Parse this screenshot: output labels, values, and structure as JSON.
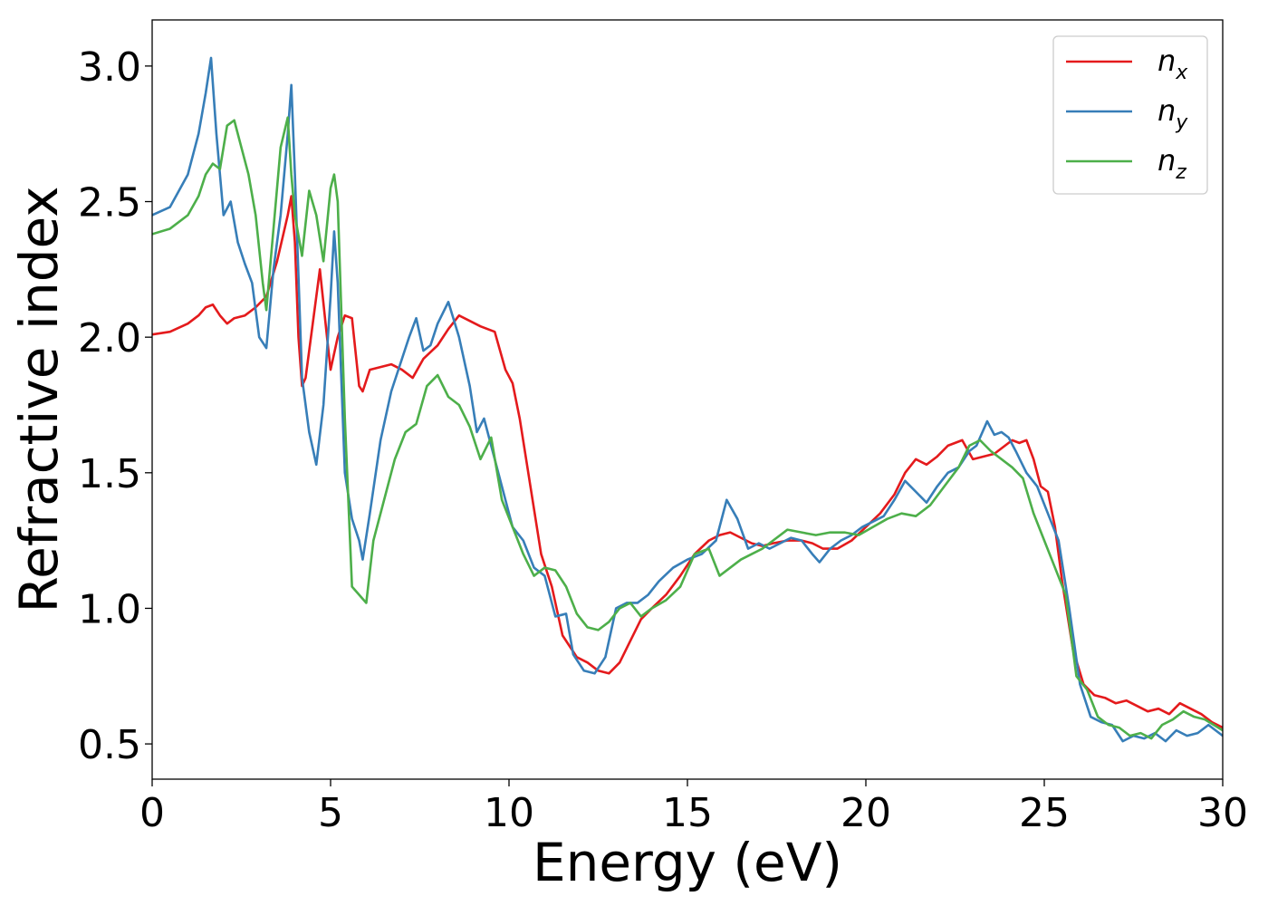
{
  "chart_data": {
    "type": "line",
    "title": "",
    "xlabel": "Energy (eV)",
    "ylabel": "Refractive index",
    "xlim": [
      0,
      30
    ],
    "ylim": [
      0.37,
      3.17
    ],
    "xticks": [
      0,
      5,
      10,
      15,
      20,
      25,
      30
    ],
    "xtick_labels": [
      "0",
      "5",
      "10",
      "15",
      "20",
      "25",
      "30"
    ],
    "yticks": [
      0.5,
      1.0,
      1.5,
      2.0,
      2.5,
      3.0
    ],
    "ytick_labels": [
      "0.5",
      "1.0",
      "1.5",
      "2.0",
      "2.5",
      "3.0"
    ],
    "grid": false,
    "legend_position": "top-right",
    "series": [
      {
        "name": "n",
        "subscript": "x",
        "color": "#e41a1c",
        "x": [
          0,
          0.5,
          1.0,
          1.3,
          1.5,
          1.7,
          1.9,
          2.1,
          2.3,
          2.6,
          2.9,
          3.2,
          3.5,
          3.8,
          3.9,
          4.0,
          4.1,
          4.2,
          4.3,
          4.5,
          4.7,
          4.9,
          5.0,
          5.2,
          5.4,
          5.6,
          5.8,
          5.9,
          6.1,
          6.4,
          6.7,
          7.0,
          7.3,
          7.6,
          8.0,
          8.3,
          8.6,
          8.9,
          9.2,
          9.6,
          9.9,
          10.1,
          10.3,
          10.6,
          10.9,
          11.2,
          11.5,
          11.9,
          12.2,
          12.5,
          12.8,
          13.1,
          13.4,
          13.7,
          14.0,
          14.4,
          14.8,
          15.2,
          15.6,
          15.9,
          16.2,
          16.5,
          16.8,
          17.1,
          17.4,
          17.8,
          18.2,
          18.5,
          18.8,
          19.2,
          19.6,
          20.0,
          20.4,
          20.8,
          21.1,
          21.4,
          21.7,
          22.0,
          22.3,
          22.7,
          23.0,
          23.3,
          23.6,
          23.9,
          24.1,
          24.3,
          24.5,
          24.7,
          24.9,
          25.1,
          25.3,
          25.5,
          25.8,
          26.1,
          26.4,
          26.7,
          27.0,
          27.3,
          27.6,
          27.9,
          28.2,
          28.5,
          28.8,
          29.1,
          29.4,
          29.7,
          30.0
        ],
        "y": [
          2.01,
          2.02,
          2.05,
          2.08,
          2.11,
          2.12,
          2.08,
          2.05,
          2.07,
          2.08,
          2.11,
          2.15,
          2.28,
          2.45,
          2.52,
          2.35,
          2.0,
          1.82,
          1.85,
          2.05,
          2.25,
          2.0,
          1.88,
          2.0,
          2.08,
          2.07,
          1.82,
          1.8,
          1.88,
          1.89,
          1.9,
          1.88,
          1.85,
          1.92,
          1.97,
          2.03,
          2.08,
          2.06,
          2.04,
          2.02,
          1.88,
          1.83,
          1.7,
          1.45,
          1.2,
          1.08,
          0.9,
          0.82,
          0.8,
          0.77,
          0.76,
          0.8,
          0.88,
          0.96,
          1.0,
          1.05,
          1.12,
          1.2,
          1.25,
          1.27,
          1.28,
          1.26,
          1.24,
          1.23,
          1.24,
          1.25,
          1.25,
          1.24,
          1.22,
          1.22,
          1.25,
          1.3,
          1.35,
          1.42,
          1.5,
          1.55,
          1.53,
          1.56,
          1.6,
          1.62,
          1.55,
          1.56,
          1.57,
          1.6,
          1.62,
          1.61,
          1.62,
          1.55,
          1.45,
          1.43,
          1.3,
          1.1,
          0.85,
          0.72,
          0.68,
          0.67,
          0.65,
          0.66,
          0.64,
          0.62,
          0.63,
          0.61,
          0.65,
          0.63,
          0.61,
          0.58,
          0.56
        ]
      },
      {
        "name": "n",
        "subscript": "y",
        "color": "#377eb8",
        "x": [
          0,
          0.5,
          1.0,
          1.3,
          1.5,
          1.65,
          1.8,
          2.0,
          2.2,
          2.4,
          2.6,
          2.8,
          3.0,
          3.2,
          3.4,
          3.6,
          3.8,
          3.9,
          4.0,
          4.2,
          4.4,
          4.6,
          4.8,
          5.0,
          5.1,
          5.2,
          5.4,
          5.6,
          5.8,
          5.9,
          6.1,
          6.4,
          6.7,
          7.0,
          7.2,
          7.4,
          7.6,
          7.8,
          8.0,
          8.3,
          8.6,
          8.9,
          9.1,
          9.3,
          9.5,
          9.8,
          10.1,
          10.4,
          10.7,
          11.0,
          11.3,
          11.6,
          11.8,
          12.1,
          12.4,
          12.7,
          13.0,
          13.3,
          13.6,
          13.9,
          14.2,
          14.6,
          15.0,
          15.4,
          15.8,
          16.1,
          16.4,
          16.7,
          17.0,
          17.3,
          17.6,
          17.9,
          18.2,
          18.5,
          18.7,
          19.0,
          19.3,
          19.6,
          19.9,
          20.2,
          20.5,
          20.8,
          21.1,
          21.4,
          21.7,
          22.0,
          22.3,
          22.6,
          22.9,
          23.1,
          23.4,
          23.6,
          23.8,
          24.0,
          24.2,
          24.5,
          24.8,
          25.1,
          25.4,
          25.7,
          26.0,
          26.3,
          26.6,
          26.9,
          27.2,
          27.5,
          27.8,
          28.1,
          28.4,
          28.7,
          29.0,
          29.3,
          29.6,
          30.0
        ],
        "y": [
          2.45,
          2.48,
          2.6,
          2.75,
          2.9,
          3.03,
          2.75,
          2.45,
          2.5,
          2.35,
          2.27,
          2.2,
          2.0,
          1.96,
          2.25,
          2.45,
          2.75,
          2.93,
          2.6,
          1.85,
          1.65,
          1.53,
          1.75,
          2.15,
          2.39,
          2.2,
          1.5,
          1.33,
          1.25,
          1.18,
          1.35,
          1.62,
          1.8,
          1.92,
          2.0,
          2.07,
          1.95,
          1.97,
          2.05,
          2.13,
          2.0,
          1.82,
          1.65,
          1.7,
          1.6,
          1.45,
          1.3,
          1.25,
          1.15,
          1.12,
          0.97,
          0.98,
          0.83,
          0.77,
          0.76,
          0.82,
          1.0,
          1.02,
          1.02,
          1.05,
          1.1,
          1.15,
          1.18,
          1.2,
          1.25,
          1.4,
          1.33,
          1.22,
          1.24,
          1.22,
          1.24,
          1.26,
          1.25,
          1.2,
          1.17,
          1.22,
          1.25,
          1.27,
          1.3,
          1.32,
          1.34,
          1.4,
          1.47,
          1.43,
          1.39,
          1.45,
          1.5,
          1.52,
          1.58,
          1.6,
          1.69,
          1.64,
          1.65,
          1.63,
          1.58,
          1.5,
          1.45,
          1.35,
          1.25,
          1.0,
          0.72,
          0.6,
          0.58,
          0.57,
          0.51,
          0.53,
          0.52,
          0.54,
          0.51,
          0.55,
          0.53,
          0.54,
          0.57,
          0.53
        ]
      },
      {
        "name": "n",
        "subscript": "z",
        "color": "#4daf4a",
        "x": [
          0,
          0.5,
          1.0,
          1.3,
          1.5,
          1.7,
          1.9,
          2.1,
          2.3,
          2.5,
          2.7,
          2.9,
          3.1,
          3.2,
          3.4,
          3.6,
          3.8,
          3.9,
          4.0,
          4.2,
          4.4,
          4.6,
          4.8,
          5.0,
          5.1,
          5.2,
          5.4,
          5.6,
          5.8,
          6.0,
          6.2,
          6.5,
          6.8,
          7.1,
          7.4,
          7.7,
          8.0,
          8.3,
          8.6,
          8.9,
          9.2,
          9.5,
          9.8,
          10.1,
          10.4,
          10.7,
          11.0,
          11.3,
          11.6,
          11.9,
          12.2,
          12.5,
          12.8,
          13.1,
          13.4,
          13.7,
          14.0,
          14.4,
          14.8,
          15.2,
          15.6,
          15.9,
          16.2,
          16.5,
          16.8,
          17.1,
          17.4,
          17.8,
          18.2,
          18.6,
          19.0,
          19.4,
          19.8,
          20.2,
          20.6,
          21.0,
          21.4,
          21.8,
          22.2,
          22.6,
          22.9,
          23.2,
          23.5,
          23.8,
          24.1,
          24.4,
          24.7,
          25.0,
          25.3,
          25.6,
          25.9,
          26.2,
          26.5,
          26.8,
          27.1,
          27.4,
          27.7,
          28.0,
          28.3,
          28.6,
          28.9,
          29.2,
          29.5,
          30.0
        ],
        "y": [
          2.38,
          2.4,
          2.45,
          2.52,
          2.6,
          2.64,
          2.62,
          2.78,
          2.8,
          2.7,
          2.6,
          2.45,
          2.2,
          2.1,
          2.4,
          2.7,
          2.81,
          2.6,
          2.45,
          2.3,
          2.54,
          2.45,
          2.28,
          2.55,
          2.6,
          2.5,
          1.7,
          1.08,
          1.05,
          1.02,
          1.25,
          1.4,
          1.55,
          1.65,
          1.68,
          1.82,
          1.86,
          1.78,
          1.75,
          1.67,
          1.55,
          1.63,
          1.4,
          1.3,
          1.2,
          1.12,
          1.15,
          1.14,
          1.08,
          0.98,
          0.93,
          0.92,
          0.95,
          1.0,
          1.02,
          0.97,
          1.0,
          1.03,
          1.08,
          1.2,
          1.22,
          1.12,
          1.15,
          1.18,
          1.2,
          1.22,
          1.25,
          1.29,
          1.28,
          1.27,
          1.28,
          1.28,
          1.27,
          1.3,
          1.33,
          1.35,
          1.34,
          1.38,
          1.45,
          1.52,
          1.6,
          1.62,
          1.58,
          1.55,
          1.52,
          1.48,
          1.35,
          1.25,
          1.15,
          1.05,
          0.75,
          0.7,
          0.6,
          0.57,
          0.56,
          0.53,
          0.54,
          0.52,
          0.57,
          0.59,
          0.62,
          0.6,
          0.59,
          0.55
        ]
      }
    ]
  }
}
